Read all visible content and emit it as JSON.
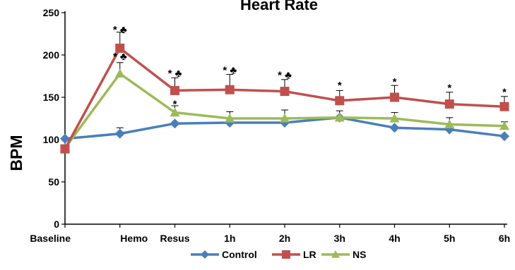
{
  "chart_data": {
    "type": "line",
    "title": "Heart Rate",
    "xlabel": "",
    "ylabel": "BPM",
    "ylim": [
      0,
      250
    ],
    "yticks": [
      0,
      50,
      100,
      150,
      200,
      250
    ],
    "grid": false,
    "legend": "bottom",
    "categories": [
      "Baseline",
      "Hemo",
      "Resus",
      "1h",
      "2h",
      "3h",
      "4h",
      "5h",
      "6h"
    ],
    "series": [
      {
        "name": "Control",
        "color": "#4A7EBB",
        "marker": "diamond",
        "values": [
          101,
          107,
          119,
          120,
          120,
          126,
          114,
          112,
          104
        ],
        "error": [
          0,
          7,
          0,
          0,
          0,
          0,
          0,
          0,
          0
        ]
      },
      {
        "name": "LR",
        "color": "#C0504D",
        "marker": "square",
        "values": [
          89,
          208,
          158,
          159,
          157,
          146,
          150,
          142,
          139
        ],
        "error": [
          0,
          19,
          15,
          18,
          14,
          12,
          14,
          14,
          12
        ]
      },
      {
        "name": "NS",
        "color": "#9BBB59",
        "marker": "triangle",
        "values": [
          90,
          178,
          132,
          125,
          125,
          126,
          125,
          118,
          116
        ],
        "error": [
          0,
          13,
          8,
          8,
          10,
          8,
          7,
          8,
          5
        ]
      }
    ],
    "annotations": [
      {
        "category": "Hemo",
        "y": 226,
        "text": "* ♣"
      },
      {
        "category": "Hemo",
        "y": 194,
        "text": "* ♣"
      },
      {
        "category": "Resus",
        "y": 174,
        "text": "* ♣"
      },
      {
        "category": "Resus",
        "y": 138,
        "text": "*"
      },
      {
        "category": "1h",
        "y": 178,
        "text": "* ♣"
      },
      {
        "category": "2h",
        "y": 172,
        "text": "* ♣"
      },
      {
        "category": "3h",
        "y": 160,
        "text": "*"
      },
      {
        "category": "4h",
        "y": 164,
        "text": "*"
      },
      {
        "category": "5h",
        "y": 157,
        "text": "*"
      },
      {
        "category": "6h",
        "y": 152,
        "text": "*"
      }
    ]
  }
}
